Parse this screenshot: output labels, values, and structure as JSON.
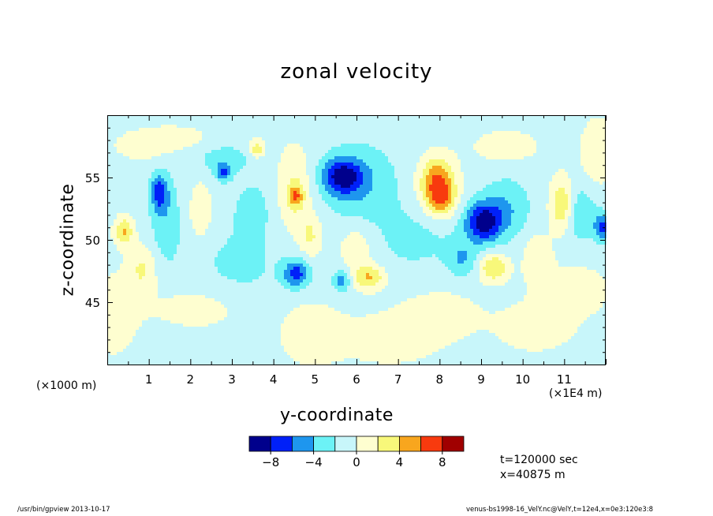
{
  "chart_data": {
    "type": "heatmap",
    "title": "zonal velocity",
    "xlabel": "y-coordinate",
    "ylabel": "z-coordinate",
    "x_scale_note": "(×1000 m)",
    "x_scale_note_right": "(×1E4 m)",
    "xlim": [
      0,
      12
    ],
    "ylim": [
      40,
      60
    ],
    "x_ticks": [
      "1",
      "2",
      "3",
      "4",
      "5",
      "6",
      "7",
      "8",
      "9",
      "10",
      "11"
    ],
    "y_ticks": [
      "45",
      "50",
      "55"
    ],
    "colorbar": {
      "levels": [
        -10,
        -8,
        -6,
        -4,
        -2,
        0,
        2,
        4,
        6,
        8,
        10
      ],
      "labels": [
        "−8",
        "−4",
        "0",
        "4",
        "8"
      ],
      "label_values": [
        -8,
        -4,
        0,
        4,
        8
      ],
      "colors": [
        "#00008c",
        "#0020f8",
        "#1e96ee",
        "#6cf2f6",
        "#c8f6fa",
        "#fefed0",
        "#f8f87a",
        "#f8a61e",
        "#f83a0e",
        "#a00000"
      ]
    },
    "blobs": [
      {
        "x": 5.65,
        "y": 55.1,
        "v": -7,
        "sx": 0.33,
        "sy": 1.0
      },
      {
        "x": 6.1,
        "y": 54.5,
        "v": -3,
        "sx": 0.6,
        "sy": 2.2
      },
      {
        "x": 7.95,
        "y": 54.6,
        "v": 7.6,
        "sx": 0.3,
        "sy": 1.4
      },
      {
        "x": 8.05,
        "y": 53.0,
        "v": 4,
        "sx": 0.25,
        "sy": 0.9
      },
      {
        "x": 9.05,
        "y": 51.4,
        "v": -8,
        "sx": 0.3,
        "sy": 1.1
      },
      {
        "x": 9.6,
        "y": 52.5,
        "v": -3,
        "sx": 0.4,
        "sy": 1.7
      },
      {
        "x": 10.95,
        "y": 52.8,
        "v": 5.5,
        "sx": 0.2,
        "sy": 1.5
      },
      {
        "x": 11.35,
        "y": 52.2,
        "v": -3,
        "sx": 0.3,
        "sy": 1.6
      },
      {
        "x": 11.92,
        "y": 51.0,
        "v": -5.5,
        "sx": 0.14,
        "sy": 0.8
      },
      {
        "x": 1.25,
        "y": 53.8,
        "v": -5.5,
        "sx": 0.15,
        "sy": 1.0
      },
      {
        "x": 1.4,
        "y": 51.5,
        "v": -2.5,
        "sx": 0.25,
        "sy": 2.5
      },
      {
        "x": 0.4,
        "y": 50.7,
        "v": 5,
        "sx": 0.16,
        "sy": 0.8
      },
      {
        "x": 0.85,
        "y": 47.7,
        "v": 3,
        "sx": 0.25,
        "sy": 1.4
      },
      {
        "x": 2.25,
        "y": 52.3,
        "v": 3,
        "sx": 0.18,
        "sy": 1.6
      },
      {
        "x": 2.8,
        "y": 55.4,
        "v": -5,
        "sx": 0.12,
        "sy": 0.5
      },
      {
        "x": 3.6,
        "y": 57.3,
        "v": 4.5,
        "sx": 0.12,
        "sy": 0.5
      },
      {
        "x": 4.5,
        "y": 54.0,
        "v": 3,
        "sx": 0.3,
        "sy": 2.5
      },
      {
        "x": 4.55,
        "y": 53.5,
        "v": 4.8,
        "sx": 0.12,
        "sy": 0.6
      },
      {
        "x": 4.55,
        "y": 47.3,
        "v": -6,
        "sx": 0.22,
        "sy": 0.8
      },
      {
        "x": 4.9,
        "y": 50.3,
        "v": 3,
        "sx": 0.2,
        "sy": 1.2
      },
      {
        "x": 5.65,
        "y": 46.7,
        "v": -4.5,
        "sx": 0.15,
        "sy": 0.6
      },
      {
        "x": 6.3,
        "y": 47.0,
        "v": 5,
        "sx": 0.28,
        "sy": 0.7
      },
      {
        "x": 6.0,
        "y": 49.5,
        "v": 2.5,
        "sx": 0.3,
        "sy": 1.4
      },
      {
        "x": 9.3,
        "y": 47.8,
        "v": 5,
        "sx": 0.25,
        "sy": 0.8
      },
      {
        "x": 8.55,
        "y": 48.5,
        "v": -3,
        "sx": 0.25,
        "sy": 1.0
      },
      {
        "x": 10.35,
        "y": 48.5,
        "v": 2.5,
        "sx": 0.25,
        "sy": 1.5
      },
      {
        "x": 0.85,
        "y": 57.5,
        "v": 2,
        "sx": 0.5,
        "sy": 0.8
      },
      {
        "x": 1.6,
        "y": 58.2,
        "v": 2,
        "sx": 0.6,
        "sy": 0.7
      },
      {
        "x": 2.8,
        "y": 56.5,
        "v": -2,
        "sx": 0.5,
        "sy": 0.9
      },
      {
        "x": 3.5,
        "y": 52.5,
        "v": -2,
        "sx": 0.3,
        "sy": 1.5
      },
      {
        "x": 0.15,
        "y": 44.0,
        "v": 2,
        "sx": 0.45,
        "sy": 2.5
      },
      {
        "x": 2.2,
        "y": 44.5,
        "v": 2,
        "sx": 0.8,
        "sy": 1.2
      },
      {
        "x": 4.9,
        "y": 42.5,
        "v": 2,
        "sx": 0.6,
        "sy": 2.0
      },
      {
        "x": 6.8,
        "y": 42.0,
        "v": 2,
        "sx": 0.8,
        "sy": 1.5
      },
      {
        "x": 8.0,
        "y": 44.0,
        "v": 2,
        "sx": 0.7,
        "sy": 1.5
      },
      {
        "x": 10.3,
        "y": 43.0,
        "v": 2,
        "sx": 0.7,
        "sy": 1.5
      },
      {
        "x": 11.8,
        "y": 57.0,
        "v": 2.5,
        "sx": 0.3,
        "sy": 2.0
      },
      {
        "x": 11.3,
        "y": 46.0,
        "v": 2,
        "sx": 0.6,
        "sy": 1.5
      },
      {
        "x": 9.6,
        "y": 57.5,
        "v": 2,
        "sx": 0.6,
        "sy": 1.0
      },
      {
        "x": 3.2,
        "y": 48.0,
        "v": -1.5,
        "sx": 0.8,
        "sy": 2.5
      },
      {
        "x": 7.4,
        "y": 50.0,
        "v": -1.5,
        "sx": 0.8,
        "sy": 2.0
      }
    ]
  },
  "info": {
    "time": "t=120000 sec",
    "x": "x=40875 m"
  },
  "footer": {
    "left": "/usr/bin/gpview   2013-10-17",
    "right": "venus-bs1998-16_VelY.nc@VelY,t=12e4,x=0e3:120e3:8"
  }
}
